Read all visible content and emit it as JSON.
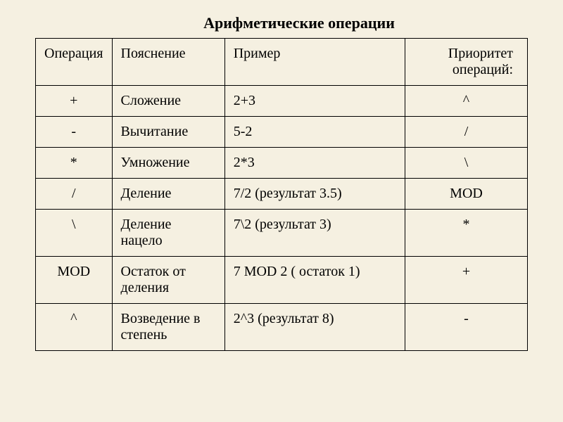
{
  "title": "Арифметические операции",
  "headers": {
    "operation": "Операция",
    "description": "Пояснение",
    "example": "Пример",
    "priority": "Приоритет операций:"
  },
  "rows": [
    {
      "operation": "+",
      "description": "Сложение",
      "example": "2+3",
      "priority": "^"
    },
    {
      "operation": "-",
      "description": "Вычитание",
      "example": "5-2",
      "priority": "/"
    },
    {
      "operation": "*",
      "description": "Умножение",
      "example": "2*3",
      "priority": "\\"
    },
    {
      "operation": "/",
      "description": "Деление",
      "example": "7/2 (результат 3.5)",
      "priority": "MOD"
    },
    {
      "operation": "\\",
      "description": "Деление нацело",
      "example": "7\\2 (результат 3)",
      "priority": "*"
    },
    {
      "operation": "MOD",
      "description": "Остаток от деления",
      "example": "7 MOD 2 ( остаток 1)",
      "priority": "+"
    },
    {
      "operation": "^",
      "description": "Возведение в степень",
      "example": "2^3 (результат 8)",
      "priority": "-"
    }
  ],
  "styling": {
    "background_color": "#f5f0e1",
    "border_color": "#000000",
    "text_color": "#000000",
    "title_fontsize": 22,
    "cell_fontsize": 20,
    "font_family": "Times New Roman",
    "column_widths": [
      "15%",
      "23%",
      "37%",
      "25%"
    ]
  }
}
